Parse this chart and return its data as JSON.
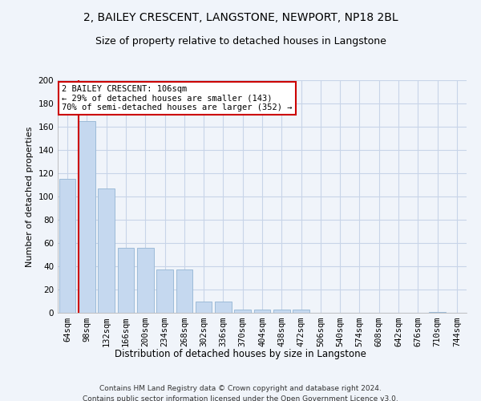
{
  "title": "2, BAILEY CRESCENT, LANGSTONE, NEWPORT, NP18 2BL",
  "subtitle": "Size of property relative to detached houses in Langstone",
  "xlabel": "Distribution of detached houses by size in Langstone",
  "ylabel": "Number of detached properties",
  "categories": [
    "64sqm",
    "98sqm",
    "132sqm",
    "166sqm",
    "200sqm",
    "234sqm",
    "268sqm",
    "302sqm",
    "336sqm",
    "370sqm",
    "404sqm",
    "438sqm",
    "472sqm",
    "506sqm",
    "540sqm",
    "574sqm",
    "608sqm",
    "642sqm",
    "676sqm",
    "710sqm",
    "744sqm"
  ],
  "values": [
    115,
    165,
    107,
    56,
    56,
    37,
    37,
    10,
    10,
    3,
    3,
    3,
    3,
    0,
    0,
    0,
    0,
    0,
    0,
    1,
    0
  ],
  "bar_color": "#c5d8ef",
  "bar_edge_color": "#9dbbd8",
  "vline_x_index": 1,
  "vline_color": "#cc0000",
  "annotation_text": "2 BAILEY CRESCENT: 106sqm\n← 29% of detached houses are smaller (143)\n70% of semi-detached houses are larger (352) →",
  "annotation_box_color": "#ffffff",
  "annotation_box_edge_color": "#cc0000",
  "ylim": [
    0,
    200
  ],
  "yticks": [
    0,
    20,
    40,
    60,
    80,
    100,
    120,
    140,
    160,
    180,
    200
  ],
  "background_color": "#f0f4fa",
  "grid_color": "#c8d4e8",
  "footer": "Contains HM Land Registry data © Crown copyright and database right 2024.\nContains public sector information licensed under the Open Government Licence v3.0.",
  "title_fontsize": 10,
  "subtitle_fontsize": 9,
  "xlabel_fontsize": 8.5,
  "ylabel_fontsize": 8,
  "tick_fontsize": 7.5,
  "footer_fontsize": 6.5
}
